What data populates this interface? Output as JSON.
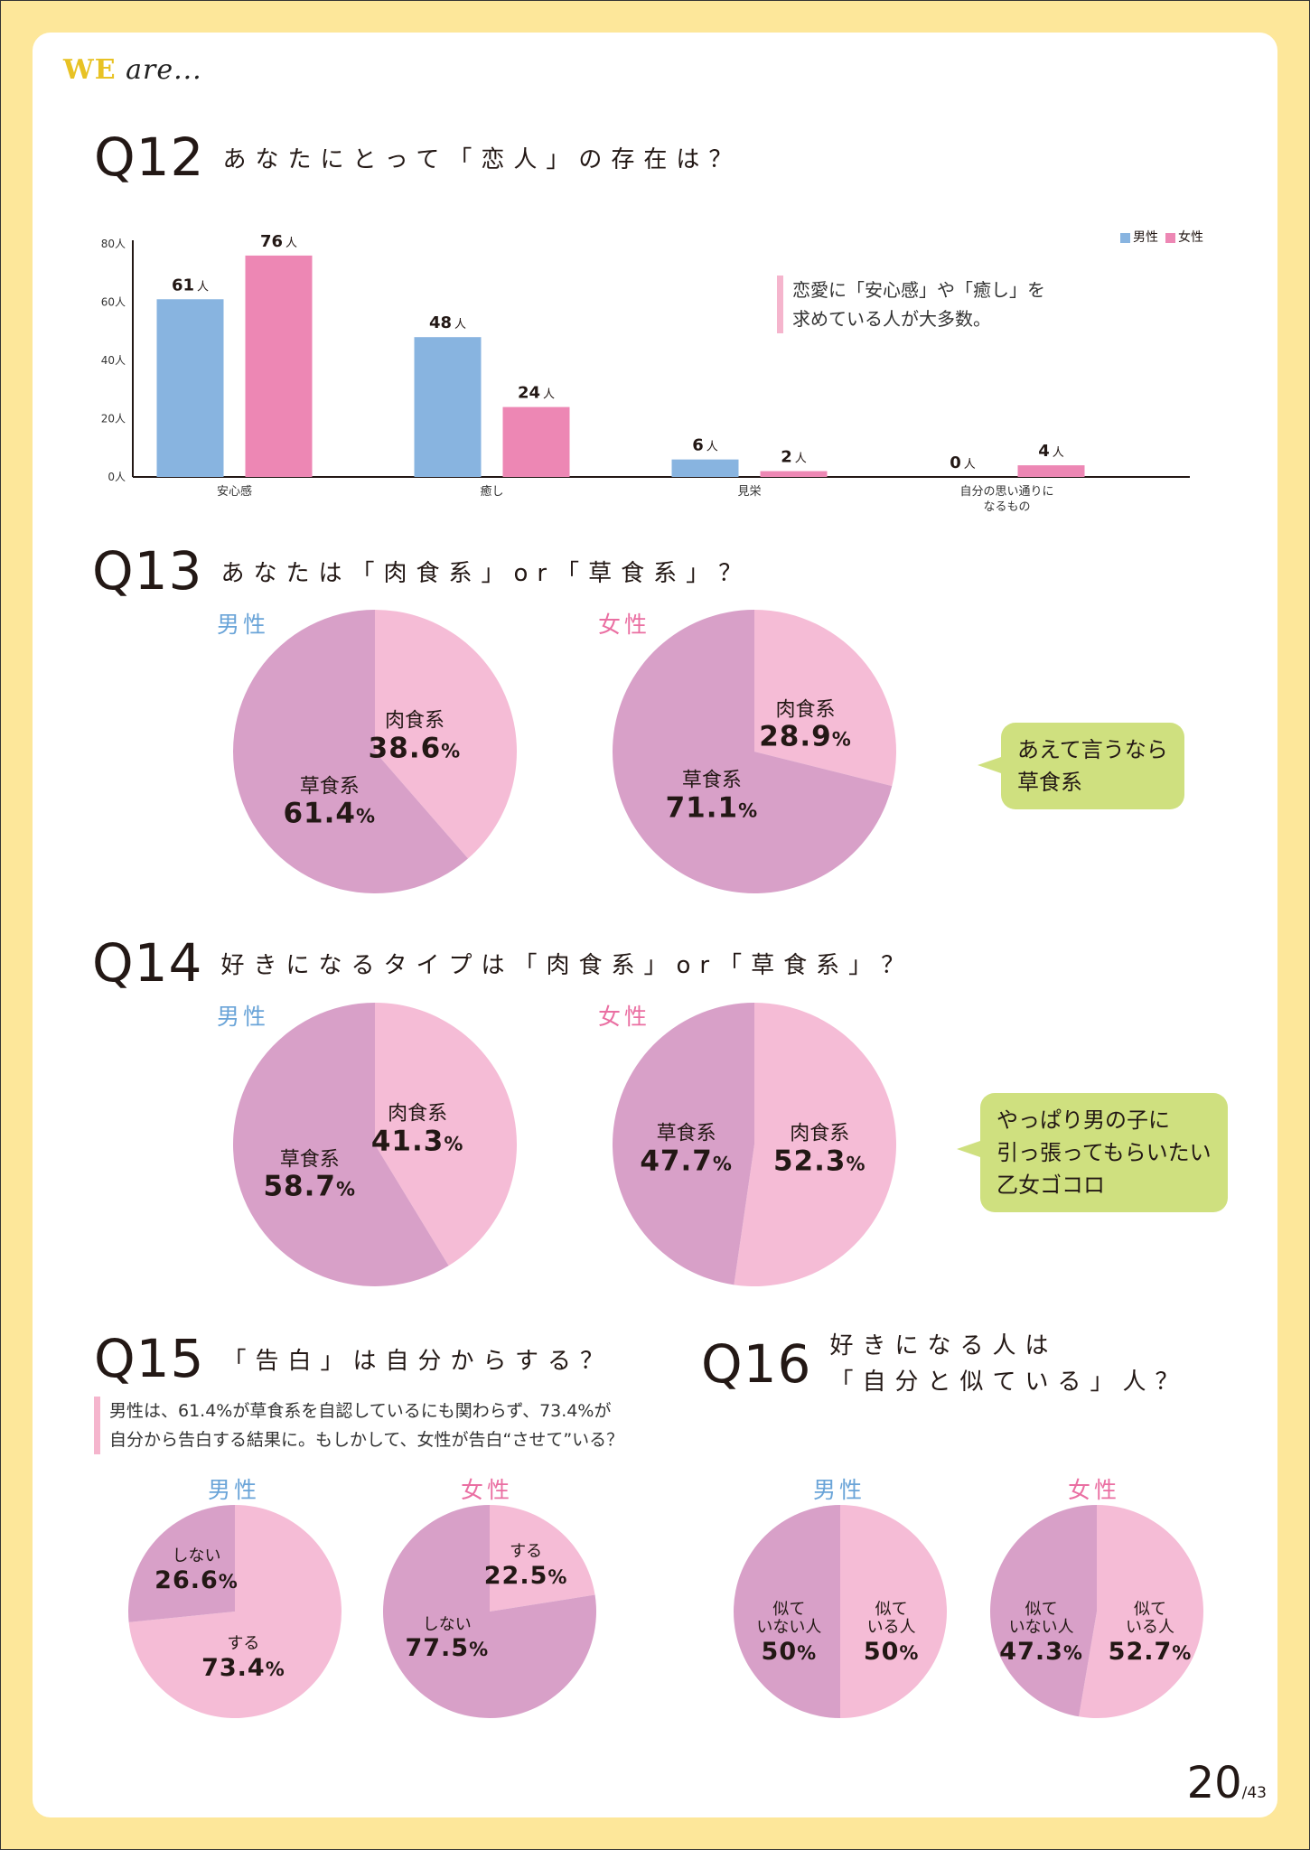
{
  "header": {
    "brand_we": "WE",
    "brand_rest": "are..."
  },
  "q12": {
    "num": "Q12",
    "text": "あなたにとって「恋人」の存在は？",
    "note": [
      "恋愛に「安心感」や「癒し」を",
      "求めている人が大多数。"
    ]
  },
  "q13": {
    "num": "Q13",
    "text": "あなたは「肉食系」or「草食系」？",
    "bubble": [
      "あえて言うなら",
      "草食系"
    ]
  },
  "q14": {
    "num": "Q14",
    "text": "好きになるタイプは「肉食系」or「草食系」？",
    "bubble": [
      "やっぱり男の子に",
      "引っ張ってもらいたい",
      "乙女ゴコロ"
    ]
  },
  "q15": {
    "num": "Q15",
    "text": "「告白」は自分からする？",
    "note": [
      "男性は、61.4%が草食系を自認しているにも関わらず、73.4%が",
      "自分から告白する結果に。もしかして、女性が告白“させて”いる？"
    ]
  },
  "q16": {
    "num": "Q16",
    "text1": "好きになる人は",
    "text2": "「自分と似ている」人？"
  },
  "gender": {
    "male": "男性",
    "female": "女性"
  },
  "page": {
    "num": "20",
    "total": "/43"
  },
  "colors": {
    "male": "#88b4e0",
    "female": "#ed87b4",
    "pie_light": "#f5bcd6",
    "pie_dark": "#d8a0c8",
    "bubble": "#cfe07f",
    "card": "#ffffff",
    "frame": "#fde79a"
  },
  "chart_data": [
    {
      "type": "bar",
      "title": "Q12 あなたにとって「恋人」の存在は？",
      "categories": [
        "安心感",
        "癒し",
        "見栄",
        "自分の思い通りになるもの"
      ],
      "category_lines": [
        [
          "安心感"
        ],
        [
          "癒し"
        ],
        [
          "見栄"
        ],
        [
          "自分の思い通りに",
          "なるもの"
        ]
      ],
      "series": [
        {
          "name": "男性",
          "values": [
            61,
            48,
            6,
            0
          ],
          "color": "#88b4e0"
        },
        {
          "name": "女性",
          "values": [
            76,
            24,
            2,
            4
          ],
          "color": "#ed87b4"
        }
      ],
      "unit": "人",
      "ylim": [
        0,
        80
      ],
      "yticks": [
        0,
        20,
        40,
        60,
        80
      ],
      "ytick_labels": [
        "0人",
        "20人",
        "40人",
        "60人",
        "80人"
      ],
      "legend": "top-right"
    },
    {
      "type": "pie",
      "id": "q13-male",
      "question": "Q13",
      "group": "男性",
      "slices": [
        {
          "label": "肉食系",
          "value": 38.6,
          "shade": "light"
        },
        {
          "label": "草食系",
          "value": 61.4,
          "shade": "dark"
        }
      ]
    },
    {
      "type": "pie",
      "id": "q13-female",
      "question": "Q13",
      "group": "女性",
      "slices": [
        {
          "label": "肉食系",
          "value": 28.9,
          "shade": "light"
        },
        {
          "label": "草食系",
          "value": 71.1,
          "shade": "dark"
        }
      ]
    },
    {
      "type": "pie",
      "id": "q14-male",
      "question": "Q14",
      "group": "男性",
      "slices": [
        {
          "label": "肉食系",
          "value": 41.3,
          "shade": "light"
        },
        {
          "label": "草食系",
          "value": 58.7,
          "shade": "dark"
        }
      ]
    },
    {
      "type": "pie",
      "id": "q14-female",
      "question": "Q14",
      "group": "女性",
      "slices": [
        {
          "label": "肉食系",
          "value": 52.3,
          "shade": "light"
        },
        {
          "label": "草食系",
          "value": 47.7,
          "shade": "dark"
        }
      ]
    },
    {
      "type": "pie",
      "id": "q15-male",
      "question": "Q15",
      "group": "男性",
      "slices": [
        {
          "label": "する",
          "value": 73.4,
          "shade": "light"
        },
        {
          "label": "しない",
          "value": 26.6,
          "shade": "dark"
        }
      ]
    },
    {
      "type": "pie",
      "id": "q15-female",
      "question": "Q15",
      "group": "女性",
      "slices": [
        {
          "label": "する",
          "value": 22.5,
          "shade": "light"
        },
        {
          "label": "しない",
          "value": 77.5,
          "shade": "dark"
        }
      ]
    },
    {
      "type": "pie",
      "id": "q16-male",
      "question": "Q16",
      "group": "男性",
      "slices": [
        {
          "label": "似ている人",
          "lines": [
            "似て",
            "いる人"
          ],
          "value": 50,
          "shade": "light"
        },
        {
          "label": "似ていない人",
          "lines": [
            "似て",
            "いない人"
          ],
          "value": 50,
          "shade": "dark"
        }
      ]
    },
    {
      "type": "pie",
      "id": "q16-female",
      "question": "Q16",
      "group": "女性",
      "slices": [
        {
          "label": "似ている人",
          "lines": [
            "似て",
            "いる人"
          ],
          "value": 52.7,
          "shade": "light"
        },
        {
          "label": "似ていない人",
          "lines": [
            "似て",
            "いない人"
          ],
          "value": 47.3,
          "shade": "dark"
        }
      ]
    }
  ]
}
